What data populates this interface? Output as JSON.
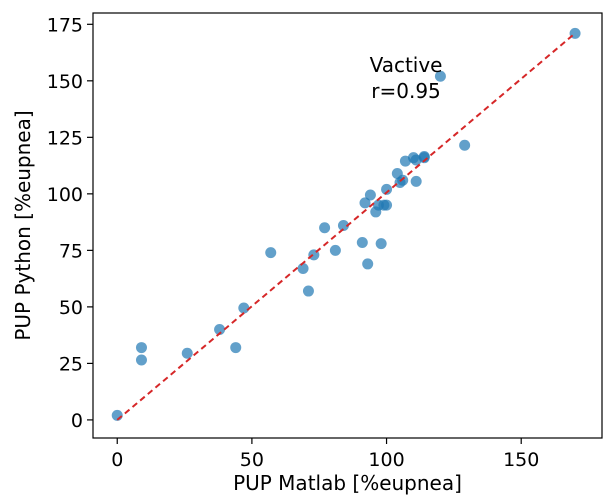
{
  "chart_data": {
    "type": "scatter",
    "title": "",
    "xlabel": "PUP Matlab [%eupnea]",
    "ylabel": "PUP Python [%eupnea]",
    "xlim": [
      -9,
      180
    ],
    "ylim": [
      -8,
      180
    ],
    "x_ticks": [
      0,
      50,
      100,
      150
    ],
    "y_ticks": [
      0,
      25,
      50,
      75,
      100,
      125,
      150,
      175
    ],
    "grid": false,
    "point_color": "#1f77b4",
    "identity_line": {
      "from": [
        0,
        0
      ],
      "to": [
        170,
        171
      ],
      "color": "#d62728",
      "style": "dashed"
    },
    "annotation": {
      "line1": "Vactive",
      "line2": "r=0.95",
      "anchor": [
        118,
        145
      ]
    },
    "points": [
      {
        "x": 0,
        "y": 2
      },
      {
        "x": 9,
        "y": 32
      },
      {
        "x": 9,
        "y": 26.5
      },
      {
        "x": 26,
        "y": 29.5
      },
      {
        "x": 38,
        "y": 40
      },
      {
        "x": 44,
        "y": 32
      },
      {
        "x": 47,
        "y": 49.5
      },
      {
        "x": 57,
        "y": 74
      },
      {
        "x": 69,
        "y": 67
      },
      {
        "x": 71,
        "y": 57
      },
      {
        "x": 73,
        "y": 73
      },
      {
        "x": 77,
        "y": 85
      },
      {
        "x": 81,
        "y": 75
      },
      {
        "x": 84,
        "y": 86
      },
      {
        "x": 91,
        "y": 78.5
      },
      {
        "x": 92,
        "y": 96
      },
      {
        "x": 93,
        "y": 69
      },
      {
        "x": 94,
        "y": 99.5
      },
      {
        "x": 96,
        "y": 92
      },
      {
        "x": 97,
        "y": 95
      },
      {
        "x": 98,
        "y": 78
      },
      {
        "x": 99,
        "y": 95
      },
      {
        "x": 100,
        "y": 102
      },
      {
        "x": 100,
        "y": 95
      },
      {
        "x": 104,
        "y": 109
      },
      {
        "x": 105,
        "y": 105
      },
      {
        "x": 106,
        "y": 106
      },
      {
        "x": 107,
        "y": 114.5
      },
      {
        "x": 110,
        "y": 116
      },
      {
        "x": 111,
        "y": 115
      },
      {
        "x": 111,
        "y": 105.5
      },
      {
        "x": 114,
        "y": 116.5
      },
      {
        "x": 114,
        "y": 116
      },
      {
        "x": 120,
        "y": 152
      },
      {
        "x": 129,
        "y": 121.5
      },
      {
        "x": 170,
        "y": 171
      }
    ]
  }
}
